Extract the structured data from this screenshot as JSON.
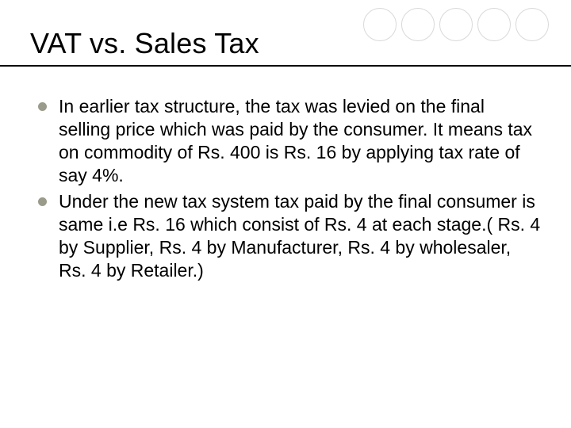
{
  "slide": {
    "title": "VAT vs. Sales Tax",
    "bullets": [
      "In earlier tax structure, the tax was levied on the final selling price which was paid by the consumer. It means tax on commodity of Rs. 400 is Rs. 16 by applying tax rate of say 4%.",
      " Under the new tax system tax paid by the final consumer is same i.e Rs. 16 which consist of Rs. 4 at each stage.( Rs. 4 by Supplier, Rs. 4 by Manufacturer, Rs. 4 by wholesaler, Rs. 4 by Retailer.)"
    ]
  },
  "style": {
    "title_fontsize": 36,
    "body_fontsize": 23,
    "title_color": "#000000",
    "body_color": "#000000",
    "bullet_color": "#9b9b8b",
    "underline_color": "#000000",
    "circle_border_color": "#d9d9d9",
    "background_color": "#ffffff",
    "decorative_circle_count": 5
  }
}
